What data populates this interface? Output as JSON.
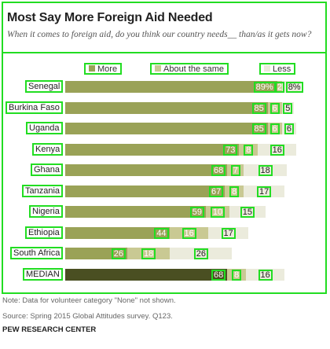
{
  "header": {
    "title": "Most Say More Foreign Aid Needed",
    "subtitle": "When it comes to foreign aid, do you think our country needs__ than/as it gets now?"
  },
  "legend": {
    "more": "More",
    "same": "About the same",
    "less": "Less"
  },
  "colors": {
    "more": "#9aa257",
    "more_median": "#4a4f22",
    "same": "#c9c993",
    "less": "#ebebdc",
    "outline": "#22dd22"
  },
  "chart_data": {
    "type": "bar",
    "orientation": "horizontal",
    "stacked": true,
    "categories": [
      "Senegal",
      "Burkina Faso",
      "Uganda",
      "Kenya",
      "Ghana",
      "Tanzania",
      "Nigeria",
      "Ethiopia",
      "South Africa",
      "MEDIAN"
    ],
    "series": [
      {
        "name": "More",
        "values": [
          89,
          85,
          85,
          73,
          68,
          67,
          59,
          44,
          26,
          68
        ]
      },
      {
        "name": "About the same",
        "values": [
          2,
          6,
          6,
          8,
          7,
          8,
          10,
          16,
          18,
          8
        ]
      },
      {
        "name": "Less",
        "values": [
          8,
          5,
          6,
          16,
          18,
          17,
          15,
          17,
          26,
          16
        ]
      }
    ],
    "labels": [
      [
        "89%",
        "2",
        "8%"
      ],
      [
        "85",
        "6",
        "5"
      ],
      [
        "85",
        "6",
        "6"
      ],
      [
        "73",
        "8",
        "16"
      ],
      [
        "68",
        "7",
        "18"
      ],
      [
        "67",
        "8",
        "17"
      ],
      [
        "59",
        "10",
        "15"
      ],
      [
        "44",
        "16",
        "17"
      ],
      [
        "26",
        "18",
        "26"
      ],
      [
        "68",
        "8",
        "16"
      ]
    ],
    "xlim": [
      0,
      100
    ],
    "grid": false,
    "legend_position": "top"
  },
  "notes": {
    "note": "Note: Data for volunteer category \"None\" not shown.",
    "source": "Source: Spring 2015 Global Attitudes survey. Q123.",
    "brand": "PEW RESEARCH CENTER"
  }
}
